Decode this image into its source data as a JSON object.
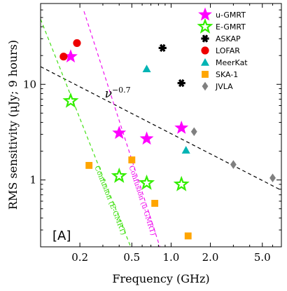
{
  "chart_data": {
    "type": "scatter",
    "xlabel": "Frequency (GHz)",
    "ylabel": "RMS sensitivity (μJy; 9 hours)",
    "xscale": "log",
    "yscale": "log",
    "xlim": [
      0.1,
      7.0
    ],
    "ylim": [
      0.2,
      70
    ],
    "x_ticks": [
      {
        "value": 0.2,
        "label": "0.2"
      },
      {
        "value": 0.5,
        "label": "0.5"
      },
      {
        "value": 1.0,
        "label": "1.0"
      },
      {
        "value": 2.0,
        "label": "2.0"
      },
      {
        "value": 5.0,
        "label": "5.0"
      }
    ],
    "y_ticks": [
      {
        "value": 1,
        "label": "1"
      },
      {
        "value": 10,
        "label": "10"
      }
    ],
    "legend_position": "top-right",
    "panel_label": "[A]",
    "series": [
      {
        "name": "u-GMRT",
        "marker": "star",
        "color": "#ff00ff",
        "filled": true,
        "points": [
          [
            0.17,
            19.5
          ],
          [
            0.4,
            3.1
          ],
          [
            0.65,
            2.7
          ],
          [
            1.2,
            3.5
          ]
        ]
      },
      {
        "name": "E-GMRT",
        "marker": "star",
        "color": "#33ee00",
        "filled": false,
        "points": [
          [
            0.17,
            6.7
          ],
          [
            0.4,
            1.1
          ],
          [
            0.65,
            0.93
          ],
          [
            1.2,
            0.9
          ]
        ]
      },
      {
        "name": "ASKAP",
        "marker": "asterisk",
        "color": "#000000",
        "filled": true,
        "points": [
          [
            0.86,
            24
          ],
          [
            1.2,
            10.3
          ]
        ]
      },
      {
        "name": "LOFAR",
        "marker": "circle",
        "color": "#ee0000",
        "filled": true,
        "points": [
          [
            0.15,
            19.5
          ],
          [
            0.19,
            27
          ]
        ]
      },
      {
        "name": "MeerKat",
        "marker": "triangle",
        "color": "#00b4b4",
        "filled": true,
        "points": [
          [
            0.65,
            14.5
          ],
          [
            1.3,
            2.05
          ]
        ]
      },
      {
        "name": "SKA-1",
        "marker": "square",
        "color": "#ffa500",
        "filled": true,
        "points": [
          [
            0.235,
            1.42
          ],
          [
            0.5,
            1.62
          ],
          [
            0.75,
            0.57
          ],
          [
            1.35,
            0.26
          ]
        ]
      },
      {
        "name": "JVLA",
        "marker": "diamond",
        "color": "#808080",
        "filled": true,
        "points": [
          [
            1.5,
            3.2
          ],
          [
            3.0,
            1.45
          ],
          [
            6.0,
            1.05
          ]
        ]
      }
    ],
    "lines": [
      {
        "name": "ν^-0.7",
        "style": "dashed",
        "color": "#000000",
        "points": [
          [
            0.1,
            15.3
          ],
          [
            7.0,
            0.78
          ]
        ]
      },
      {
        "name": "Confusion (E-GMRT)",
        "style": "dashed",
        "color": "#33dd00",
        "points": [
          [
            0.1,
            48
          ],
          [
            0.49,
            0.2
          ]
        ]
      },
      {
        "name": "Confusion (u-GMRT)",
        "style": "dashed",
        "color": "#ee00ee",
        "points": [
          [
            0.215,
            58
          ],
          [
            0.82,
            0.2
          ]
        ]
      }
    ],
    "annotations": [
      {
        "text_base": "ν",
        "text_exp": "−0.7",
        "x": 0.31,
        "y": 7.3
      },
      {
        "text": "Confusion (E-GMRT)",
        "x": 0.33,
        "y": 0.6,
        "color": "#33dd00"
      },
      {
        "text": "Confusion (u-GMRT)",
        "x": 0.58,
        "y": 0.6,
        "color": "#ee00ee"
      }
    ]
  }
}
